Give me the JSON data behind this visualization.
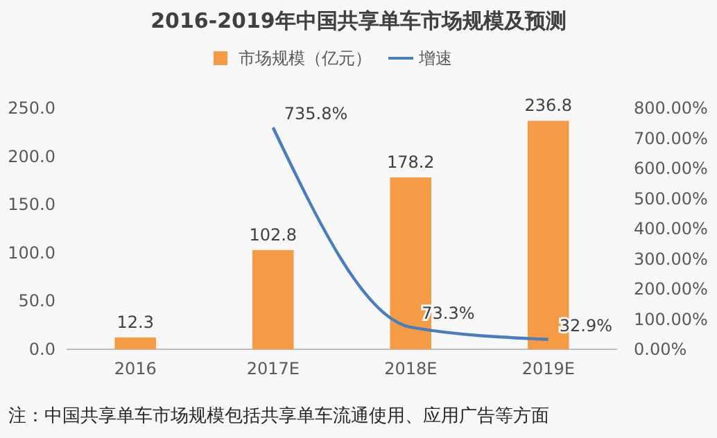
{
  "chart_data": {
    "type": "bar",
    "title": "2016-2019年中国共享单车市场规模及预测",
    "categories": [
      "2016",
      "2017E",
      "2018E",
      "2019E"
    ],
    "series": [
      {
        "name": "市场规模（亿元）",
        "color": "#f59a45",
        "values": [
          12.3,
          102.8,
          178.2,
          236.8
        ],
        "value_labels": [
          "12.3",
          "102.8",
          "178.2",
          "236.8"
        ]
      },
      {
        "name": "增速",
        "type": "line",
        "axis": "y2",
        "color": "#4a7ebb",
        "values": [
          null,
          735.8,
          73.3,
          32.9
        ],
        "value_labels": [
          null,
          "735.8%",
          "73.3%",
          "32.9%"
        ]
      }
    ],
    "ylim": [
      0,
      250
    ],
    "yticks": [
      {
        "value": 0,
        "label": "0.0"
      },
      {
        "value": 50,
        "label": "50.0"
      },
      {
        "value": 100,
        "label": "100.0"
      },
      {
        "value": 150,
        "label": "150.0"
      },
      {
        "value": 200,
        "label": "200.0"
      },
      {
        "value": 250,
        "label": "250.0"
      }
    ],
    "y2lim": [
      0,
      800
    ],
    "y2ticks": [
      {
        "value": 0,
        "label": "0.00%"
      },
      {
        "value": 100,
        "label": "100.00%"
      },
      {
        "value": 200,
        "label": "200.00%"
      },
      {
        "value": 300,
        "label": "300.00%"
      },
      {
        "value": 400,
        "label": "400.00%"
      },
      {
        "value": 500,
        "label": "500.00%"
      },
      {
        "value": 600,
        "label": "600.00%"
      },
      {
        "value": 700,
        "label": "700.00%"
      },
      {
        "value": 800,
        "label": "800.00%"
      }
    ],
    "legend": "top",
    "marker": "none",
    "line_style": "solid",
    "annotations": [
      "注：中国共享单车市场规模包括共享单车流通使用、应用广告等方面"
    ]
  }
}
